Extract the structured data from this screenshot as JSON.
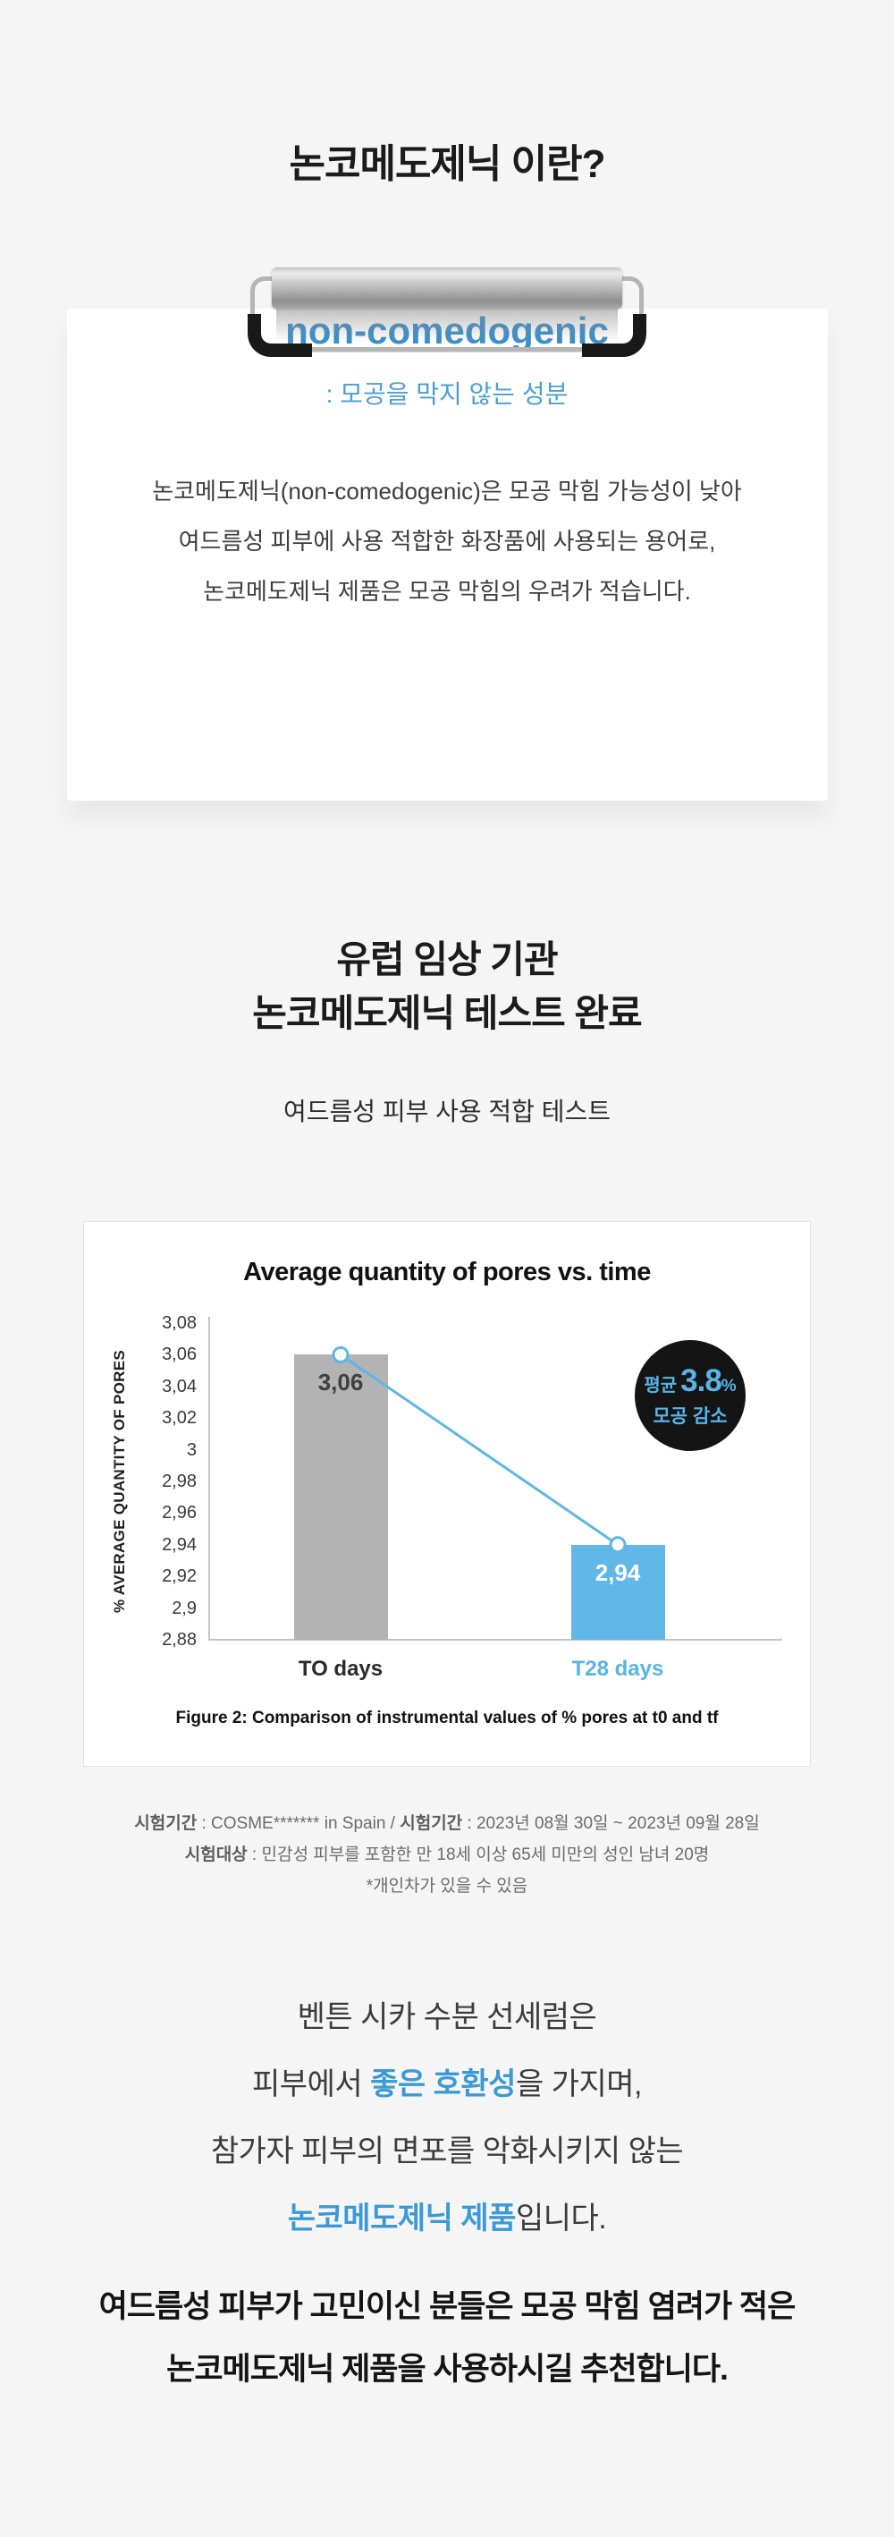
{
  "page": {
    "title": "논코메도제닉 이란?"
  },
  "definition_card": {
    "term": "non-comedogenic",
    "subtitle": ": 모공을 막지 않는 성분",
    "body_lines": [
      "논코메도제닉(non-comedogenic)은 모공 막힘 가능성이 낮아",
      "여드름성 피부에 사용 적합한 화장품에 사용되는 용어로,",
      "논코메도제닉 제품은 모공 막힘의 우려가 적습니다."
    ]
  },
  "test_section": {
    "heading_line1": "유럽 임상 기관",
    "heading_line2": "논코메도제닉 테스트 완료",
    "subheading": "여드름성 피부 사용 적합 테스트"
  },
  "chart_data": {
    "type": "bar",
    "title": "Average quantity of pores vs. time",
    "ylabel": "% AVERAGE QUANTITY OF PORES",
    "categories": [
      "TO days",
      "T28 days"
    ],
    "values": [
      3.06,
      2.94
    ],
    "value_labels": [
      "3,06",
      "2,94"
    ],
    "bar_colors": [
      "#b3b3b3",
      "#61b7e7"
    ],
    "value_label_colors": [
      "#3f3f3f",
      "#ffffff"
    ],
    "category_colors": [
      "#2b2b2b",
      "#5ab4e8"
    ],
    "ylim": [
      2.88,
      3.08
    ],
    "yticks": [
      "3,08",
      "3,06",
      "3,04",
      "3,02",
      "3",
      "2,98",
      "2,96",
      "2,94",
      "2,92",
      "2,9",
      "2,88"
    ],
    "grid": false,
    "legend": "none",
    "line_overlay": {
      "color": "#5fb6e6"
    },
    "badge": {
      "prefix": "평균",
      "value": "3.8",
      "unit": "%",
      "line2": "모공 감소",
      "bg": "#141414",
      "fg": "#57b3e8"
    },
    "caption": "Figure 2: Comparison of instrumental values of % pores at t0 and tf"
  },
  "test_info": {
    "line1": {
      "label1": "시험기간",
      "text1": " : COSME******* in Spain / ",
      "label2": "시험기간",
      "text2": " : 2023년 08월 30일 ~ 2023년 09월 28일"
    },
    "line2": {
      "label": "시험대상",
      "text": " : 민감성 피부를 포함한 만 18세 이상 65세 미만의 성인 남녀 20명"
    },
    "line3": "*개인차가 있을 수 있음"
  },
  "result_paragraph": {
    "lines": [
      {
        "pre": "벤튼 시카 수분 선세럼은",
        "em": "",
        "post": ""
      },
      {
        "pre": "피부에서 ",
        "em": "좋은 호환성",
        "post": "을 가지며,"
      },
      {
        "pre": "참가자 피부의 면포를 악화시키지 않는",
        "em": "",
        "post": ""
      },
      {
        "pre": "",
        "em": "논코메도제닉 제품",
        "post": "입니다."
      }
    ]
  },
  "recommendation": {
    "line1": "여드름성 피부가 고민이신 분들은 모공 막힘 염려가 적은",
    "line2": "논코메도제닉 제품을 사용하시길 추천합니다."
  }
}
